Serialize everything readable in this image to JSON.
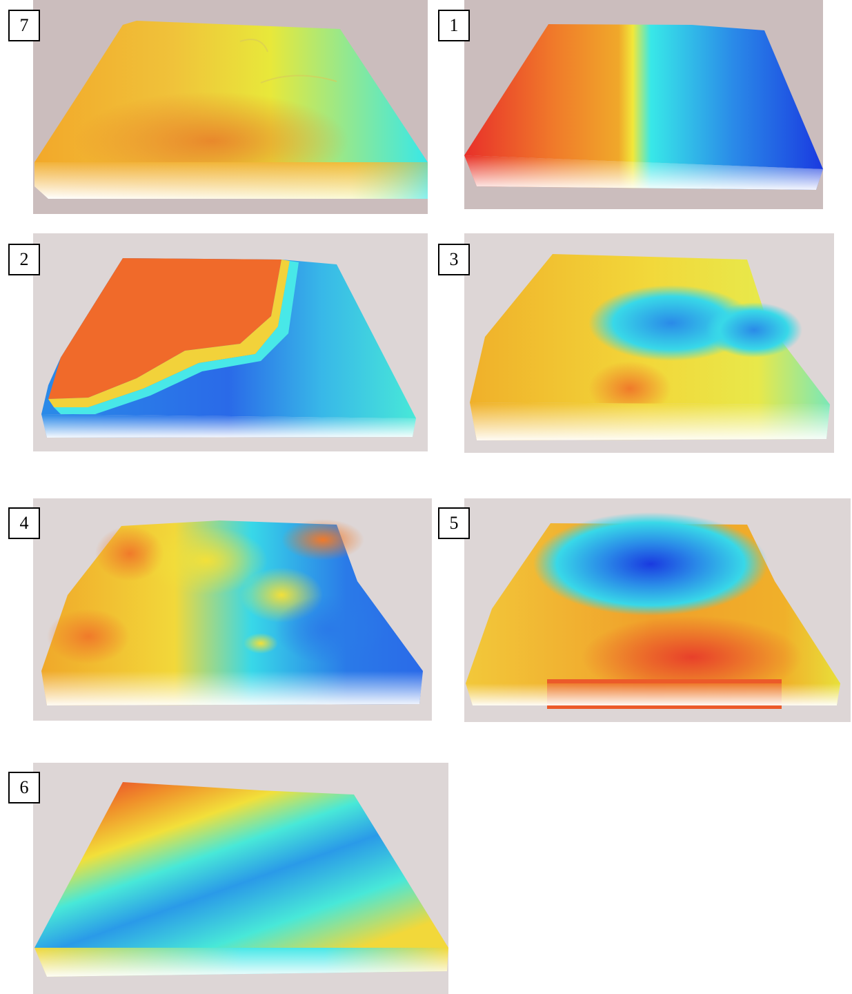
{
  "panels": [
    {
      "id": "7",
      "label": "7"
    },
    {
      "id": "1",
      "label": "1"
    },
    {
      "id": "2",
      "label": "2"
    },
    {
      "id": "3",
      "label": "3"
    },
    {
      "id": "4",
      "label": "4"
    },
    {
      "id": "5",
      "label": "5"
    },
    {
      "id": "6",
      "label": "6"
    }
  ],
  "colors": {
    "background_panel": "#cbbdbd",
    "background_panel_light": "#ddd6d6",
    "red": "#e8302a",
    "orange": "#f08a2a",
    "yellow": "#f2e83a",
    "cyan": "#38e8e8",
    "blue": "#2a6ae8",
    "deep_blue": "#1a2ae0"
  }
}
